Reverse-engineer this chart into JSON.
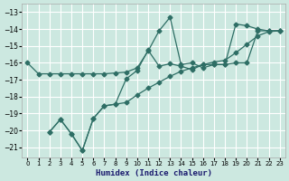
{
  "xlabel": "Humidex (Indice chaleur)",
  "bg_color": "#cce8e0",
  "grid_color": "#ffffff",
  "line_color": "#2e6e65",
  "xlim": [
    -0.5,
    23.5
  ],
  "ylim": [
    -21.6,
    -12.5
  ],
  "xticks": [
    0,
    1,
    2,
    3,
    4,
    5,
    6,
    7,
    8,
    9,
    10,
    11,
    12,
    13,
    14,
    15,
    16,
    17,
    18,
    19,
    20,
    21,
    22,
    23
  ],
  "yticks": [
    -13,
    -14,
    -15,
    -16,
    -17,
    -18,
    -19,
    -20,
    -21
  ],
  "line1": {
    "x": [
      0,
      1,
      2,
      3,
      4,
      5,
      6,
      7,
      8,
      9,
      10,
      11,
      12,
      13,
      14,
      15,
      16,
      17,
      18,
      19,
      20,
      21,
      22,
      23
    ],
    "y": [
      -16.0,
      -16.65,
      -16.65,
      -16.65,
      -16.65,
      -16.65,
      -16.65,
      -16.65,
      -16.6,
      -16.55,
      -16.3,
      -15.3,
      -14.1,
      -13.3,
      -16.1,
      -16.0,
      -16.3,
      -16.1,
      -16.1,
      -13.7,
      -13.8,
      -14.0,
      -14.1,
      -14.1
    ]
  },
  "line2": {
    "x": [
      2,
      3,
      4,
      5,
      6,
      7,
      8,
      9,
      10,
      11,
      12,
      13,
      14,
      15,
      16,
      17,
      18,
      19,
      20,
      21,
      22,
      23
    ],
    "y": [
      -20.1,
      -19.35,
      -20.2,
      -21.2,
      -19.3,
      -18.55,
      -18.45,
      -18.35,
      -17.9,
      -17.5,
      -17.15,
      -16.8,
      -16.5,
      -16.3,
      -16.1,
      -15.95,
      -15.85,
      -15.4,
      -14.9,
      -14.4,
      -14.15,
      -14.1
    ]
  },
  "line3": {
    "x": [
      2,
      3,
      4,
      5,
      6,
      7,
      8,
      9,
      10,
      11,
      12,
      13,
      14,
      15,
      16,
      17,
      18,
      19,
      20,
      21,
      22,
      23
    ],
    "y": [
      -20.1,
      -19.35,
      -20.2,
      -21.2,
      -19.3,
      -18.55,
      -18.45,
      -16.95,
      -16.45,
      -15.25,
      -16.2,
      -16.05,
      -16.2,
      -16.4,
      -16.1,
      -16.1,
      -16.1,
      -16.0,
      -16.0,
      -14.1,
      -14.1,
      -14.1
    ]
  }
}
